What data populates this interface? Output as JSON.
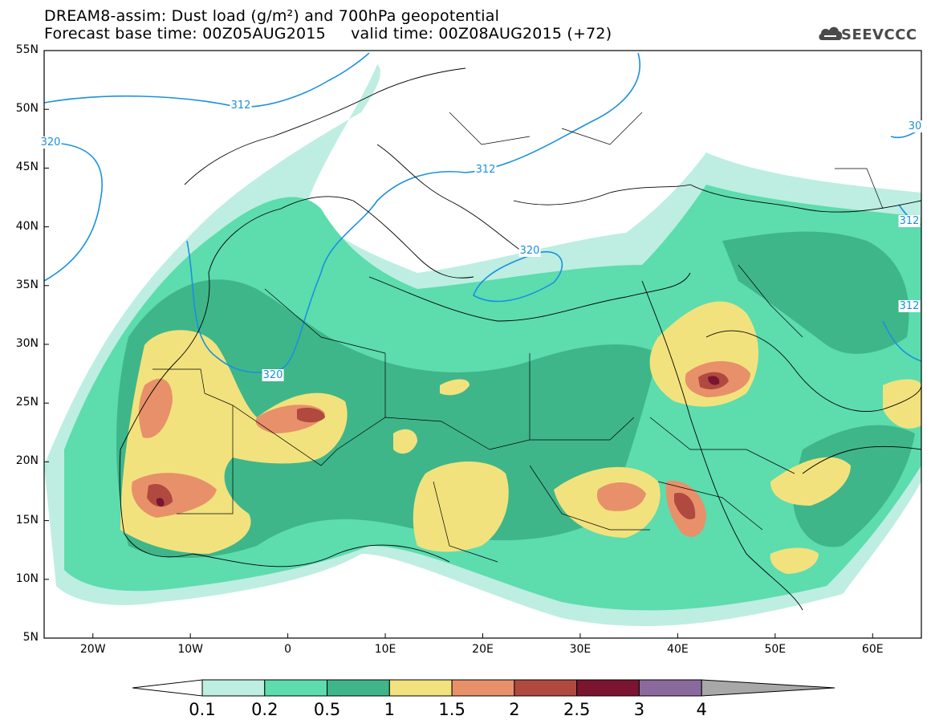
{
  "title_line1": "DREAM8-assim: Dust load (g/m²) and 700hPa geopotential",
  "title_line2": "Forecast base time: 00Z05AUG2015     valid time: 00Z08AUG2015 (+72)",
  "logo_text": "SEEVCCC",
  "lat_labels": [
    "55N",
    "50N",
    "45N",
    "40N",
    "35N",
    "30N",
    "25N",
    "20N",
    "15N",
    "10N",
    "5N"
  ],
  "lon_labels": [
    "20W",
    "10W",
    "0",
    "10E",
    "20E",
    "30E",
    "40E",
    "50E",
    "60E"
  ],
  "contour_labels": [
    "312",
    "320",
    "320",
    "312",
    "320",
    "312",
    "312",
    "30"
  ],
  "colorbar": {
    "labels": [
      "0.1",
      "0.2",
      "0.5",
      "1",
      "1.5",
      "2",
      "2.5",
      "3",
      "4"
    ],
    "colors": [
      "#bdeee1",
      "#5ddcae",
      "#3eb68a",
      "#f2e27d",
      "#e8906a",
      "#b04a40",
      "#7a1430",
      "#8a6a9c",
      "#a8a8a8"
    ]
  },
  "colors": {
    "dust_low": "#bdeee1",
    "dust_mid": "#5ddcae",
    "dust_high": "#3eb68a",
    "dust_yellow": "#f2e27d",
    "dust_orange": "#e8906a",
    "dust_red": "#b04a40",
    "dust_maroon": "#7a1430",
    "contour": "#1a90e0"
  }
}
